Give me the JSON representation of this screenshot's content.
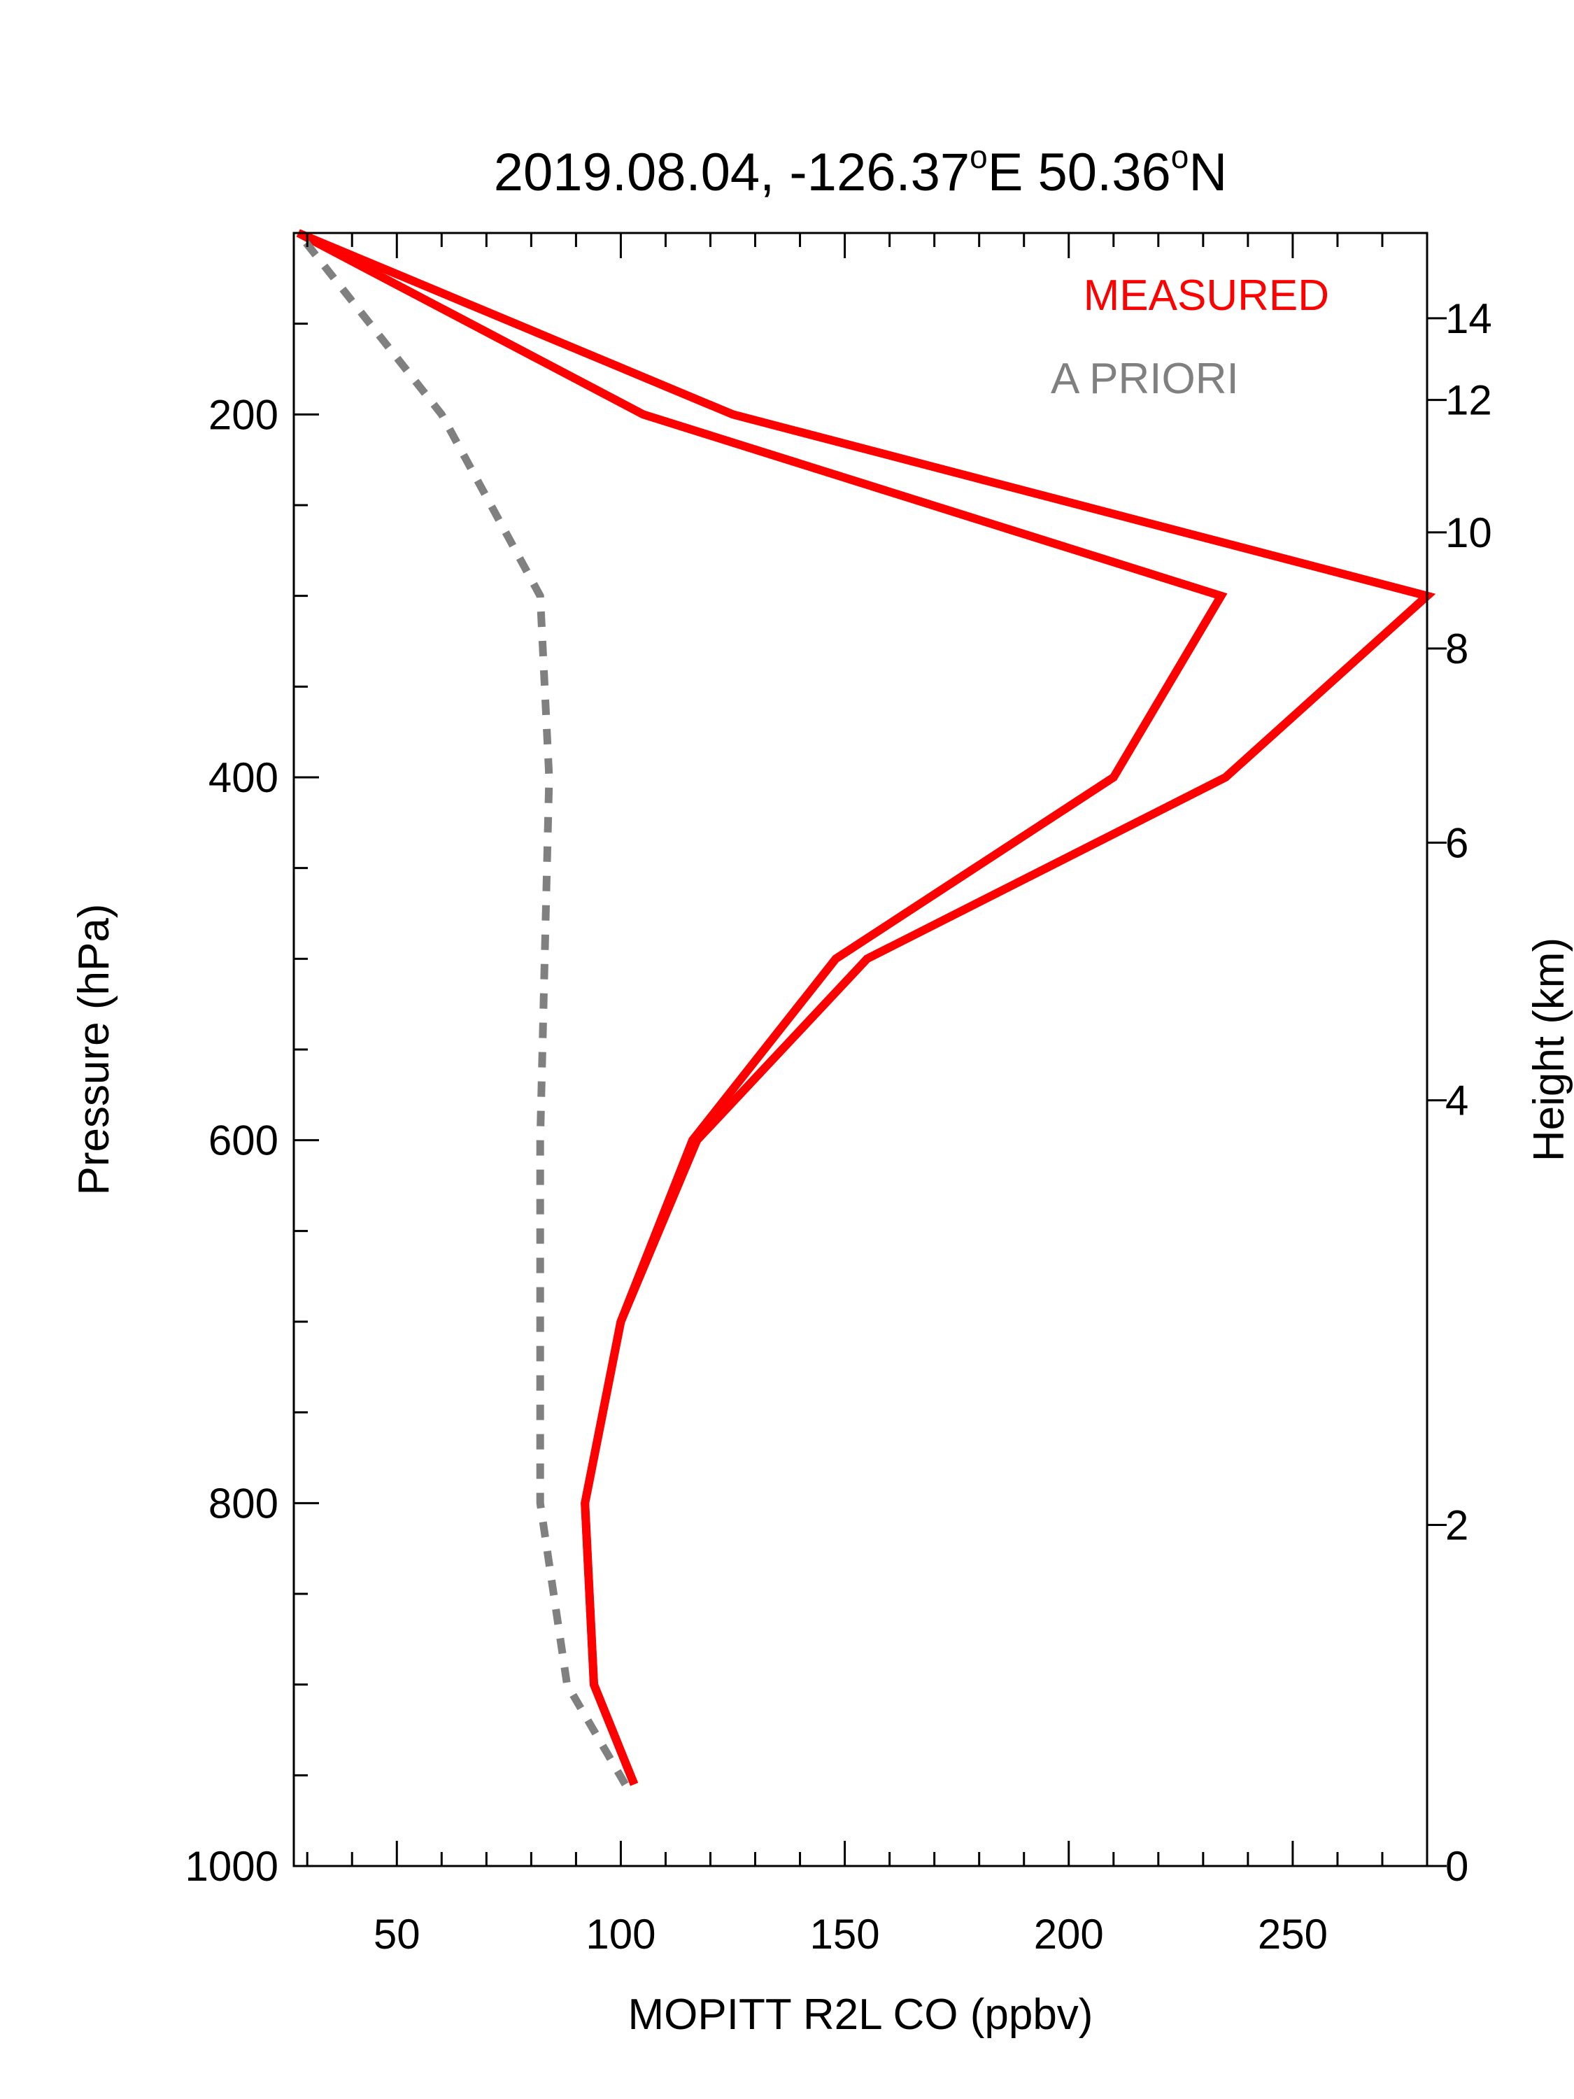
{
  "chart_data": {
    "type": "line",
    "title": "2019.08.04, -126.37°E 50.36°N",
    "title_parts": {
      "lead": "2019.08.04, -126.37",
      "sup1": "o",
      "mid": "E 50.36",
      "sup2": "o",
      "tail": "N"
    },
    "xlabel": "MOPITT R2L CO (ppbv)",
    "ylabel": "Pressure (hPa)",
    "y2label": "Height (km)",
    "xlim": [
      27,
      280
    ],
    "ylim": [
      1000,
      100
    ],
    "y_reversed": true,
    "x_ticks": [
      50,
      100,
      150,
      200,
      250
    ],
    "y_ticks": [
      200,
      400,
      600,
      800,
      1000
    ],
    "y2_ticks": [
      {
        "label": "0",
        "pressure": 1000
      },
      {
        "label": "2",
        "pressure": 812
      },
      {
        "label": "4",
        "pressure": 578
      },
      {
        "label": "6",
        "pressure": 436
      },
      {
        "label": "8",
        "pressure": 329
      },
      {
        "label": "10",
        "pressure": 265
      },
      {
        "label": "12",
        "pressure": 192
      },
      {
        "label": "14",
        "pressure": 147
      }
    ],
    "grid": false,
    "legend_position": "top-right",
    "legend": [
      {
        "label": "MEASURED",
        "color": "#ff0000"
      },
      {
        "label": "A PRIORI",
        "color": "#808080"
      }
    ],
    "series": [
      {
        "color": "#ff0000",
        "style": "solid",
        "points": [
          [
            103,
            955
          ],
          [
            94,
            900
          ],
          [
            92,
            800
          ],
          [
            100,
            700
          ],
          [
            116,
            600
          ],
          [
            148,
            500
          ],
          [
            210,
            400
          ],
          [
            234,
            300
          ],
          [
            105,
            200
          ],
          [
            28,
            100
          ]
        ]
      },
      {
        "color": "#ff0000",
        "style": "solid",
        "points": [
          [
            103,
            955
          ],
          [
            94,
            900
          ],
          [
            92,
            800
          ],
          [
            100,
            700
          ],
          [
            117,
            600
          ],
          [
            155,
            500
          ],
          [
            235,
            400
          ],
          [
            280,
            300
          ],
          [
            125,
            200
          ],
          [
            28,
            100
          ]
        ]
      },
      {
        "color": "#808080",
        "style": "dashed",
        "points": [
          [
            101,
            955
          ],
          [
            88,
            900
          ],
          [
            82,
            800
          ],
          [
            82,
            700
          ],
          [
            82,
            600
          ],
          [
            83,
            500
          ],
          [
            84,
            400
          ],
          [
            82,
            300
          ],
          [
            60,
            200
          ],
          [
            28,
            100
          ]
        ]
      }
    ]
  }
}
